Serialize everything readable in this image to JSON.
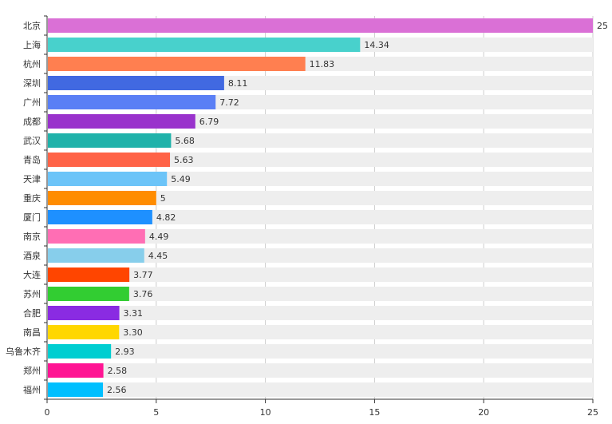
{
  "chart_data": {
    "type": "bar",
    "orientation": "horizontal",
    "categories": [
      "北京",
      "上海",
      "杭州",
      "深圳",
      "广州",
      "成都",
      "武汉",
      "青岛",
      "天津",
      "重庆",
      "厦门",
      "南京",
      "酒泉",
      "大连",
      "苏州",
      "合肥",
      "南昌",
      "乌鲁木齐",
      "郑州",
      "福州"
    ],
    "values": [
      25,
      14.34,
      11.83,
      8.11,
      7.72,
      6.79,
      5.68,
      5.63,
      5.49,
      5,
      4.82,
      4.49,
      4.45,
      3.77,
      3.76,
      3.31,
      3.3,
      2.93,
      2.58,
      2.56
    ],
    "value_labels": [
      "25",
      "14.34",
      "11.83",
      "8.11",
      "7.72",
      "6.79",
      "5.68",
      "5.63",
      "5.49",
      "5",
      "4.82",
      "4.49",
      "4.45",
      "3.77",
      "3.76",
      "3.31",
      "3.30",
      "2.93",
      "2.58",
      "2.56"
    ],
    "colors": [
      "#DA70D6",
      "#48D1CC",
      "#FF7F50",
      "#4169E1",
      "#5A7FF5",
      "#9932CC",
      "#20B2AA",
      "#FF6347",
      "#6CC4F8",
      "#FF8C00",
      "#1E90FF",
      "#FF6EB4",
      "#87CEEB",
      "#FF4500",
      "#32CD32",
      "#8A2BE2",
      "#FFD700",
      "#00CED1",
      "#FF1493",
      "#00BFFF"
    ],
    "background_bar_color": "#EEEEEE",
    "xlim": [
      0,
      25
    ],
    "xticks": [
      0,
      5,
      10,
      15,
      20,
      25
    ],
    "title": "",
    "xlabel": "",
    "ylabel": "",
    "grid": "vertical"
  }
}
